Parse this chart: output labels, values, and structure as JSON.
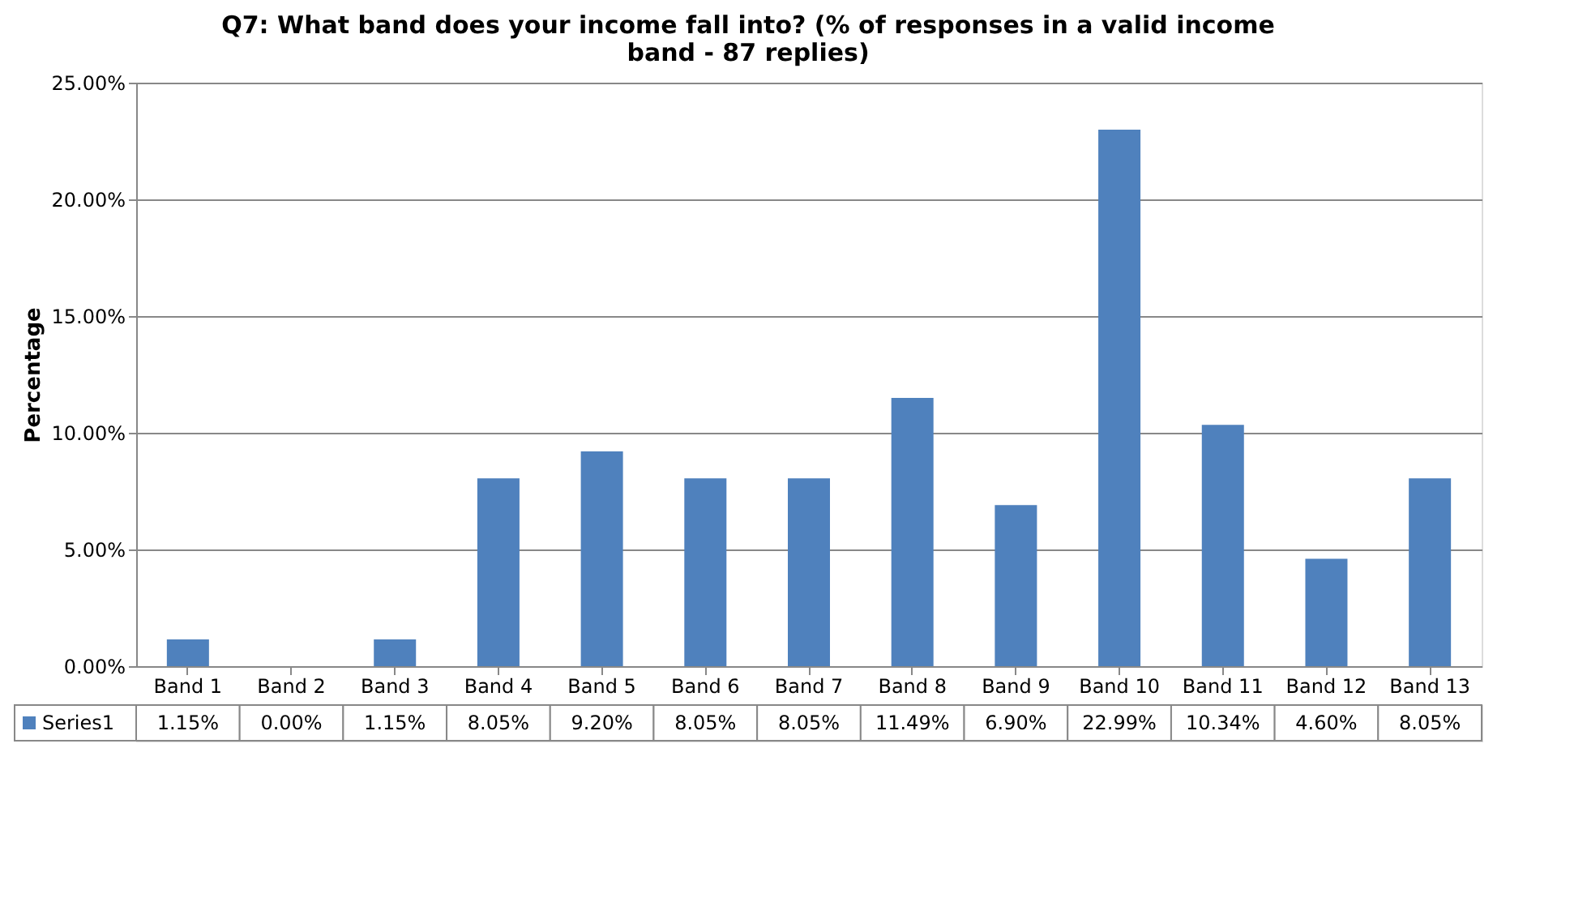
{
  "chart_data": {
    "type": "bar",
    "title": [
      "Q7: What band does your income fall into? (% of responses in a valid income",
      "band - 87 replies)"
    ],
    "ylabel": "Percentage",
    "categories": [
      "Band 1",
      "Band 2",
      "Band 3",
      "Band 4",
      "Band 5",
      "Band 6",
      "Band 7",
      "Band 8",
      "Band 9",
      "Band 10",
      "Band 11",
      "Band 12",
      "Band 13"
    ],
    "series": [
      {
        "name": "Series1",
        "color": "#4f81bd",
        "values": [
          1.15,
          0.0,
          1.15,
          8.05,
          9.2,
          8.05,
          8.05,
          11.49,
          6.9,
          22.99,
          10.34,
          4.6,
          8.05
        ],
        "value_labels": [
          "1.15%",
          "0.00%",
          "1.15%",
          "8.05%",
          "9.20%",
          "8.05%",
          "8.05%",
          "11.49%",
          "6.90%",
          "22.99%",
          "10.34%",
          "4.60%",
          "8.05%"
        ]
      }
    ],
    "ylim": [
      0,
      25
    ],
    "yticks": [
      {
        "value": 0,
        "label": "0.00%"
      },
      {
        "value": 5,
        "label": "5.00%"
      },
      {
        "value": 10,
        "label": "10.00%"
      },
      {
        "value": 15,
        "label": "15.00%"
      },
      {
        "value": 20,
        "label": "20.00%"
      },
      {
        "value": 25,
        "label": "25.00%"
      }
    ],
    "grid": "y",
    "legend": "bottom left"
  }
}
